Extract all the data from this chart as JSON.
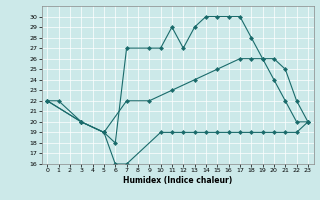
{
  "xlabel": "Humidex (Indice chaleur)",
  "bg_color": "#cce9e9",
  "line_color": "#1a6b6b",
  "grid_color": "#b0d8d8",
  "xlim": [
    -0.5,
    23.5
  ],
  "ylim": [
    16,
    31
  ],
  "xticks": [
    0,
    1,
    2,
    3,
    4,
    5,
    6,
    7,
    8,
    9,
    10,
    11,
    12,
    13,
    14,
    15,
    16,
    17,
    18,
    19,
    20,
    21,
    22,
    23
  ],
  "yticks": [
    16,
    17,
    18,
    19,
    20,
    21,
    22,
    23,
    24,
    25,
    26,
    27,
    28,
    29,
    30
  ],
  "series": [
    {
      "x": [
        0,
        1,
        3,
        5,
        6,
        7,
        9,
        10,
        11,
        12,
        13,
        14,
        15,
        16,
        17,
        18,
        19,
        20,
        21,
        22,
        23
      ],
      "y": [
        22,
        22,
        20,
        19,
        18,
        27,
        27,
        27,
        29,
        27,
        29,
        30,
        30,
        30,
        30,
        28,
        26,
        24,
        22,
        20,
        20
      ]
    },
    {
      "x": [
        0,
        3,
        5,
        6,
        7,
        10,
        11,
        12,
        13,
        14,
        15,
        16,
        17,
        18,
        19,
        20,
        21,
        22,
        23
      ],
      "y": [
        22,
        20,
        19,
        16,
        16,
        19,
        19,
        19,
        19,
        19,
        19,
        19,
        19,
        19,
        19,
        19,
        19,
        19,
        20
      ]
    },
    {
      "x": [
        0,
        3,
        5,
        7,
        9,
        11,
        13,
        15,
        17,
        18,
        19,
        20,
        21,
        22,
        23
      ],
      "y": [
        22,
        20,
        19,
        22,
        22,
        23,
        24,
        25,
        26,
        26,
        26,
        26,
        25,
        22,
        20
      ]
    }
  ]
}
